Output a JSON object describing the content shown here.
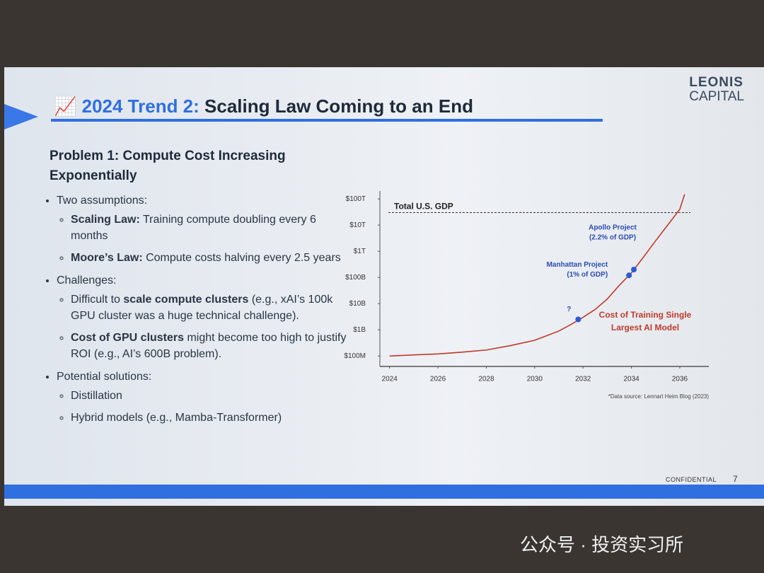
{
  "slide": {
    "logo": [
      "LEONIS",
      "CAPITAL"
    ],
    "title_icon": "📈",
    "title_highlight": "2024 Trend 2:",
    "title_rest": "Scaling Law Coming to an End",
    "heading": "Problem 1: Compute Cost Increasing Exponentially",
    "bullets": [
      {
        "text": "Two assumptions:",
        "sub": [
          [
            {
              "b": "Scaling Law:"
            },
            {
              "t": " Training compute doubling every 6 months"
            }
          ],
          [
            {
              "b": "Moore’s Law:"
            },
            {
              "t": " Compute costs halving every 2.5 years"
            }
          ]
        ]
      },
      {
        "text": "Challenges:",
        "sub": [
          [
            {
              "t": "Difficult to "
            },
            {
              "b": "scale compute clusters"
            },
            {
              "t": " (e.g., xAI’s 100k GPU cluster was a huge technical challenge)."
            }
          ],
          [
            {
              "b": "Cost of GPU clusters"
            },
            {
              "t": " might become too high to justify ROI (e.g., AI’s 600B problem)."
            }
          ]
        ]
      },
      {
        "text": "Potential solutions:",
        "sub": [
          [
            {
              "t": "Distillation"
            }
          ],
          [
            {
              "t": "Hybrid models (e.g., Mamba-Transformer)"
            }
          ]
        ]
      }
    ],
    "footer": "CONFIDENTIAL",
    "page": "7"
  },
  "watermark": "公众号 · 投资实习所",
  "chart_data": {
    "type": "line",
    "log_scale_y": true,
    "xlim": [
      2023.6,
      2037.2
    ],
    "xticks": [
      2024,
      2026,
      2028,
      2030,
      2032,
      2034,
      2036
    ],
    "ylim": [
      40000000,
      200000000000000
    ],
    "yticks": [
      {
        "value": 100000000,
        "label": "$100M"
      },
      {
        "value": 1000000000,
        "label": "$1B"
      },
      {
        "value": 10000000000,
        "label": "$10B"
      },
      {
        "value": 100000000000,
        "label": "$100B"
      },
      {
        "value": 1000000000000,
        "label": "$1T"
      },
      {
        "value": 10000000000000,
        "label": "$10T"
      },
      {
        "value": 100000000000000,
        "label": "$100T"
      }
    ],
    "series": [
      {
        "color": "#c0392b",
        "x": [
          2024,
          2025,
          2026,
          2027,
          2028,
          2029,
          2030,
          2030.5,
          2031,
          2031.5,
          2032,
          2032.5,
          2033,
          2033.5,
          2034,
          2034.5,
          2035,
          2035.5,
          2036,
          2036.2
        ],
        "values": [
          100000000,
          110000000,
          120000000,
          140000000,
          170000000,
          250000000,
          400000000,
          600000000,
          900000000,
          1600000000,
          3000000000,
          6000000000,
          15000000000,
          50000000000,
          150000000000,
          600000000000,
          2500000000000,
          10000000000000,
          40000000000000,
          150000000000000
        ]
      }
    ],
    "series_label": [
      "Cost of Training Single",
      "Largest AI Model"
    ],
    "reference_line": {
      "y": 30000000000000,
      "label": "Total U.S. GDP"
    },
    "points": [
      {
        "x": 2031.8,
        "y": 2500000000,
        "color": "#2a5bd7",
        "label": [
          "?"
        ]
      },
      {
        "x": 2033.9,
        "y": 120000000000,
        "color": "#2a5bd7",
        "label": [
          "Manhattan Project",
          "(1% of GDP)"
        ]
      },
      {
        "x": 2034.1,
        "y": 200000000000,
        "color": "#2a5bd7",
        "label": [
          "Apollo Project",
          "(2.2% of GDP)"
        ]
      }
    ],
    "source": "*Data source: Lennart Heim Blog (2023)"
  }
}
